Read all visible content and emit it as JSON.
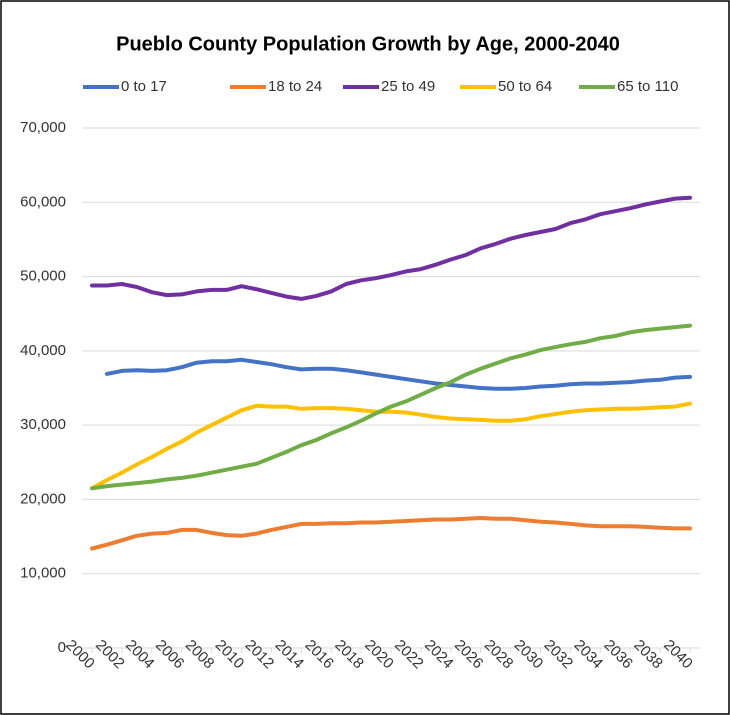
{
  "chart_data": {
    "type": "line",
    "title": "Pueblo County Population Growth by Age, 2000-2040",
    "x": [
      2000,
      2001,
      2002,
      2003,
      2004,
      2005,
      2006,
      2007,
      2008,
      2009,
      2010,
      2011,
      2012,
      2013,
      2014,
      2015,
      2016,
      2017,
      2018,
      2019,
      2020,
      2021,
      2022,
      2023,
      2024,
      2025,
      2026,
      2027,
      2028,
      2029,
      2030,
      2031,
      2032,
      2033,
      2034,
      2035,
      2036,
      2037,
      2038,
      2039,
      2040
    ],
    "xlim": [
      2000,
      2040
    ],
    "xticks": [
      2000,
      2002,
      2004,
      2006,
      2008,
      2010,
      2012,
      2014,
      2016,
      2018,
      2020,
      2022,
      2024,
      2026,
      2028,
      2030,
      2032,
      2034,
      2036,
      2038,
      2040
    ],
    "ylim": [
      0,
      70000
    ],
    "yticks": [
      {
        "value": 0,
        "label": "0"
      },
      {
        "value": 10000,
        "label": "10,000"
      },
      {
        "value": 20000,
        "label": "20,000"
      },
      {
        "value": 30000,
        "label": "30,000"
      },
      {
        "value": 40000,
        "label": "40,000"
      },
      {
        "value": 50000,
        "label": "50,000"
      },
      {
        "value": 60000,
        "label": "60,000"
      },
      {
        "value": 70000,
        "label": "70,000"
      }
    ],
    "grid": true,
    "legend": "top",
    "series": [
      {
        "name": "0 to 17",
        "color": "#4472c4",
        "values": [
          null,
          36900,
          37300,
          37400,
          37300,
          37400,
          37800,
          38400,
          38600,
          38600,
          38800,
          38500,
          38200,
          37800,
          37500,
          37600,
          37600,
          37400,
          37100,
          36800,
          36500,
          36200,
          35900,
          35600,
          35400,
          35200,
          35000,
          34900,
          34900,
          35000,
          35200,
          35300,
          35500,
          35600,
          35600,
          35700,
          35800,
          36000,
          36100,
          36400,
          36500
        ]
      },
      {
        "name": "18 to 24",
        "color": "#ed7d31",
        "values": [
          13400,
          13900,
          14500,
          15100,
          15400,
          15500,
          15900,
          15900,
          15500,
          15200,
          15100,
          15400,
          15900,
          16300,
          16700,
          16700,
          16800,
          16800,
          16900,
          16900,
          17000,
          17100,
          17200,
          17300,
          17300,
          17400,
          17500,
          17400,
          17400,
          17200,
          17000,
          16900,
          16700,
          16500,
          16400,
          16400,
          16400,
          16300,
          16200,
          16100,
          16100
        ]
      },
      {
        "name": "25 to 49",
        "color": "#7030a0",
        "values": [
          48800,
          48800,
          49000,
          48600,
          47900,
          47500,
          47600,
          48000,
          48200,
          48200,
          48700,
          48300,
          47800,
          47300,
          47000,
          47400,
          48000,
          49000,
          49500,
          49800,
          50200,
          50700,
          51000,
          51600,
          52300,
          52900,
          53800,
          54400,
          55100,
          55600,
          56000,
          56400,
          57200,
          57700,
          58400,
          58800,
          59200,
          59700,
          60100,
          60500,
          60600
        ]
      },
      {
        "name": "50 to 64",
        "color": "#ffc000",
        "values": [
          21500,
          22600,
          23600,
          24700,
          25700,
          26800,
          27800,
          29000,
          30000,
          31000,
          32000,
          32600,
          32500,
          32500,
          32200,
          32300,
          32300,
          32200,
          32000,
          31800,
          31800,
          31700,
          31400,
          31100,
          30900,
          30800,
          30700,
          30600,
          30600,
          30800,
          31200,
          31500,
          31800,
          32000,
          32100,
          32200,
          32200,
          32300,
          32400,
          32500,
          32900
        ]
      },
      {
        "name": "65 to 110",
        "color": "#70ad47",
        "values": [
          21500,
          21800,
          22000,
          22200,
          22400,
          22700,
          22900,
          23200,
          23600,
          24000,
          24400,
          24800,
          25600,
          26400,
          27300,
          28000,
          28900,
          29700,
          30600,
          31600,
          32500,
          33200,
          34100,
          35000,
          35800,
          36800,
          37600,
          38300,
          39000,
          39500,
          40100,
          40500,
          40900,
          41200,
          41700,
          42000,
          42500,
          42800,
          43000,
          43200,
          43400
        ]
      }
    ]
  }
}
